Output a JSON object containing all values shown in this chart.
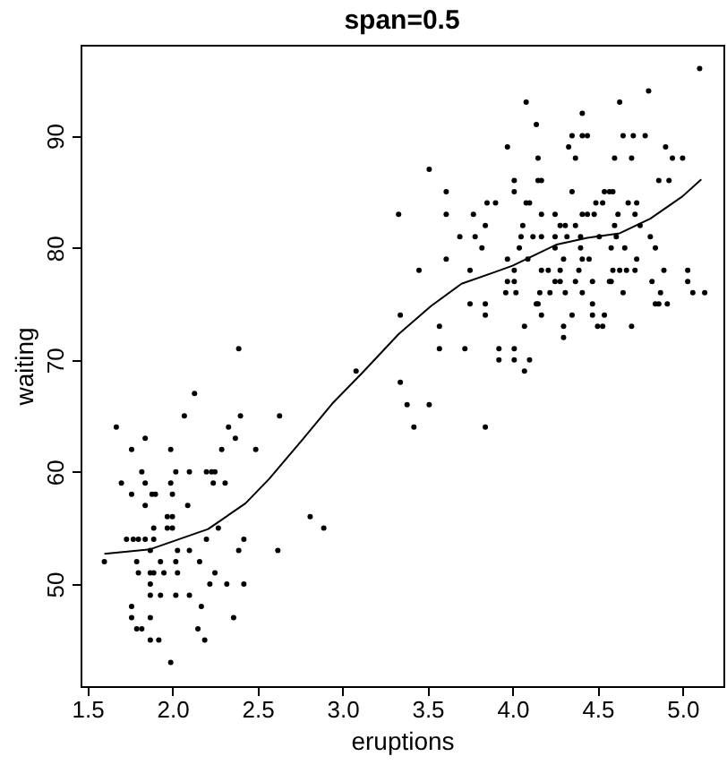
{
  "chart_data": {
    "type": "scatter",
    "title": "span=0.5",
    "xlabel": "eruptions",
    "ylabel": "waiting",
    "xlim": [
      1.46,
      5.24
    ],
    "ylim": [
      40.88,
      98.12
    ],
    "xticks": [
      1.5,
      {
        "value": 2,
        "label": "2.0"
      },
      2.5,
      {
        "value": 3,
        "label": "3.0"
      },
      3.5,
      {
        "value": 4,
        "label": "4.0"
      },
      4.5,
      {
        "value": 5,
        "label": "5.0"
      }
    ],
    "yticks": [
      50,
      60,
      70,
      80,
      90
    ],
    "series": [
      {
        "type": "scatter",
        "color": "#000000",
        "x": [
          2.39,
          3.08,
          2.13,
          2.07,
          2.4,
          2.63,
          1.67,
          2.33,
          1.84,
          2.37,
          1.76,
          1.99,
          2.29,
          2.49,
          1.82,
          2.02,
          2.1,
          2.2,
          2.23,
          2.25,
          1.7,
          1.84,
          1.99,
          2.24,
          2.31,
          1.76,
          1.88,
          1.9,
          2.0,
          1.84,
          2.09,
          1.97,
          2.0,
          2.81,
          1.89,
          1.97,
          2.0,
          2.27,
          2.89,
          1.73,
          1.77,
          1.8,
          1.84,
          1.89,
          2.2,
          2.42,
          1.87,
          2.03,
          2.1,
          2.39,
          2.62,
          1.6,
          1.79,
          1.93,
          2.02,
          2.16,
          1.8,
          1.87,
          1.89,
          1.95,
          2.03,
          2.25,
          1.87,
          2.22,
          2.32,
          2.42,
          1.87,
          1.93,
          2.02,
          2.1,
          1.76,
          2.17,
          1.76,
          1.87,
          2.36,
          1.79,
          1.82,
          2.15,
          1.87,
          1.92,
          2.19,
          1.99,
          3.34,
          3.57,
          3.57,
          3.72,
          3.92,
          4.01,
          3.92,
          4.01,
          4.1,
          4.07,
          3.34,
          3.38,
          3.51,
          3.42,
          3.84,
          3.84,
          4.17,
          4.35,
          4.47,
          4.54,
          4.07,
          4.3,
          4.5,
          4.53,
          4.7,
          4.3,
          3.75,
          3.84,
          4.14,
          4.15,
          4.47,
          4.84,
          4.86,
          4.91,
          3.96,
          4.02,
          4.16,
          4.22,
          4.31,
          4.41,
          4.65,
          4.87,
          5.13,
          3.97,
          4.01,
          4.25,
          4.28,
          4.37,
          4.47,
          4.57,
          4.58,
          4.82,
          5.03,
          5.1,
          4.8,
          4.08,
          4.63,
          4.41,
          4.14,
          4.35,
          4.41,
          4.44,
          4.65,
          4.71,
          4.78,
          3.97,
          4.33,
          4.9,
          3.51,
          4.15,
          4.37,
          4.6,
          4.7,
          4.94,
          5.0,
          4.01,
          4.15,
          4.17,
          4.86,
          4.92,
          3.61,
          4.01,
          4.35,
          4.54,
          4.57,
          4.59,
          3.85,
          3.9,
          4.08,
          4.1,
          4.49,
          4.53,
          4.68,
          4.73,
          3.33,
          3.61,
          3.77,
          4.17,
          4.25,
          4.41,
          4.44,
          4.48,
          4.62,
          4.72,
          3.84,
          4.06,
          4.28,
          4.31,
          4.37,
          4.6,
          4.75,
          3.69,
          3.78,
          4.05,
          4.12,
          4.17,
          4.25,
          4.32,
          4.4,
          4.51,
          4.61,
          4.81,
          3.82,
          4.04,
          4.25,
          4.4,
          4.58,
          4.66,
          4.84,
          3.61,
          3.97,
          4.09,
          4.3,
          4.41,
          4.45,
          4.73,
          3.45,
          3.75,
          4.01,
          4.17,
          4.21,
          4.28,
          4.39,
          4.59,
          4.63,
          4.67,
          4.72,
          4.89,
          5.03,
          5.06
        ],
        "values": [
          71,
          69,
          67,
          65,
          65,
          65,
          64,
          64,
          63,
          63,
          62,
          62,
          62,
          62,
          60,
          60,
          60,
          60,
          60,
          60,
          59,
          59,
          59,
          59,
          59,
          58,
          58,
          58,
          58,
          57,
          57,
          56,
          56,
          56,
          55,
          55,
          55,
          55,
          55,
          54,
          54,
          54,
          54,
          54,
          54,
          54,
          53,
          53,
          53,
          53,
          53,
          52,
          52,
          52,
          52,
          52,
          51,
          51,
          51,
          51,
          51,
          51,
          50,
          50,
          50,
          50,
          49,
          49,
          49,
          49,
          48,
          48,
          47,
          47,
          47,
          46,
          46,
          46,
          45,
          45,
          45,
          43,
          74,
          73,
          71,
          71,
          71,
          71,
          70,
          70,
          70,
          69,
          68,
          66,
          66,
          64,
          64,
          74,
          74,
          74,
          74,
          74,
          73,
          73,
          73,
          73,
          73,
          72,
          75,
          75,
          75,
          75,
          75,
          75,
          75,
          75,
          76,
          76,
          76,
          76,
          76,
          76,
          76,
          76,
          76,
          77,
          77,
          77,
          77,
          77,
          77,
          77,
          77,
          77,
          77,
          96,
          94,
          93,
          93,
          92,
          91,
          90,
          90,
          90,
          90,
          90,
          90,
          89,
          89,
          89,
          87,
          88,
          88,
          88,
          88,
          88,
          88,
          86,
          86,
          86,
          86,
          86,
          85,
          85,
          85,
          85,
          85,
          85,
          84,
          84,
          84,
          84,
          84,
          84,
          84,
          84,
          83,
          83,
          83,
          83,
          83,
          83,
          83,
          83,
          83,
          83,
          82,
          82,
          82,
          82,
          82,
          82,
          82,
          81,
          81,
          81,
          81,
          81,
          81,
          81,
          81,
          81,
          81,
          81,
          80,
          80,
          80,
          80,
          80,
          80,
          80,
          79,
          79,
          79,
          79,
          79,
          79,
          79,
          78,
          78,
          78,
          78,
          78,
          78,
          78,
          78,
          78,
          78,
          78,
          78,
          78,
          76
        ]
      },
      {
        "type": "line",
        "color": "#000000",
        "x": [
          1.6,
          1.87,
          2.21,
          2.43,
          2.57,
          2.76,
          2.94,
          3.12,
          3.33,
          3.52,
          3.7,
          3.89,
          4.0,
          4.26,
          4.44,
          4.63,
          4.81,
          5.0,
          5.11
        ],
        "values": [
          52.7,
          53.1,
          54.9,
          57.2,
          59.4,
          62.8,
          66.1,
          68.9,
          72.3,
          74.8,
          76.8,
          77.8,
          78.4,
          80.3,
          80.9,
          81.3,
          82.6,
          84.6,
          86.1
        ]
      }
    ]
  }
}
